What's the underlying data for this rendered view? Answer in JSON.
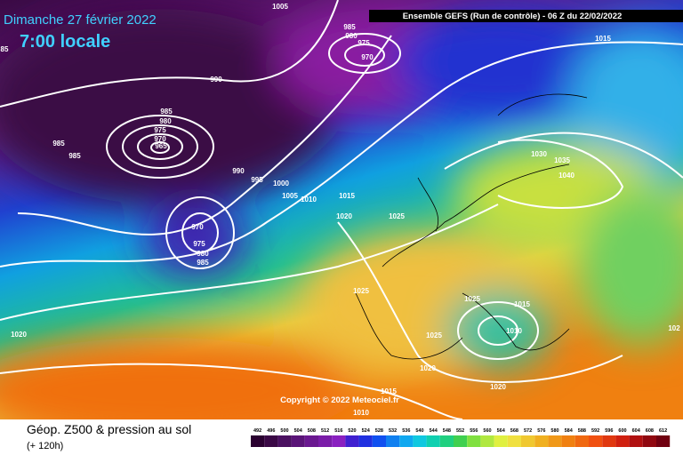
{
  "header": {
    "date": "Dimanche 27 février 2022",
    "local_time": "7:00 locale",
    "run": "Ensemble GEFS  (Run de contrôle)  -  06 Z du 22/02/2022"
  },
  "isobar_labels": [
    1005,
    985,
    980,
    975,
    970,
    1015,
    85,
    990,
    985,
    980,
    975,
    970,
    965,
    985,
    985,
    990,
    995,
    1000,
    1005,
    1010,
    1015,
    1020,
    1025,
    1030,
    1035,
    1040,
    970,
    975,
    980,
    985,
    1025,
    1025,
    1015,
    1010,
    1025,
    1020,
    1020,
    1020,
    1015,
    1010,
    102
  ],
  "copyright": "Copyright © 2022 Meteociel.fr",
  "footer": {
    "title": "Géop. Z500 & pression au sol",
    "lead": "(+ 120h)"
  },
  "legend_values": [
    492,
    496,
    500,
    504,
    508,
    512,
    516,
    520,
    524,
    528,
    532,
    536,
    540,
    544,
    548,
    552,
    556,
    560,
    564,
    568,
    572,
    576,
    580,
    584,
    588,
    592,
    596,
    600,
    604,
    608,
    612
  ]
}
